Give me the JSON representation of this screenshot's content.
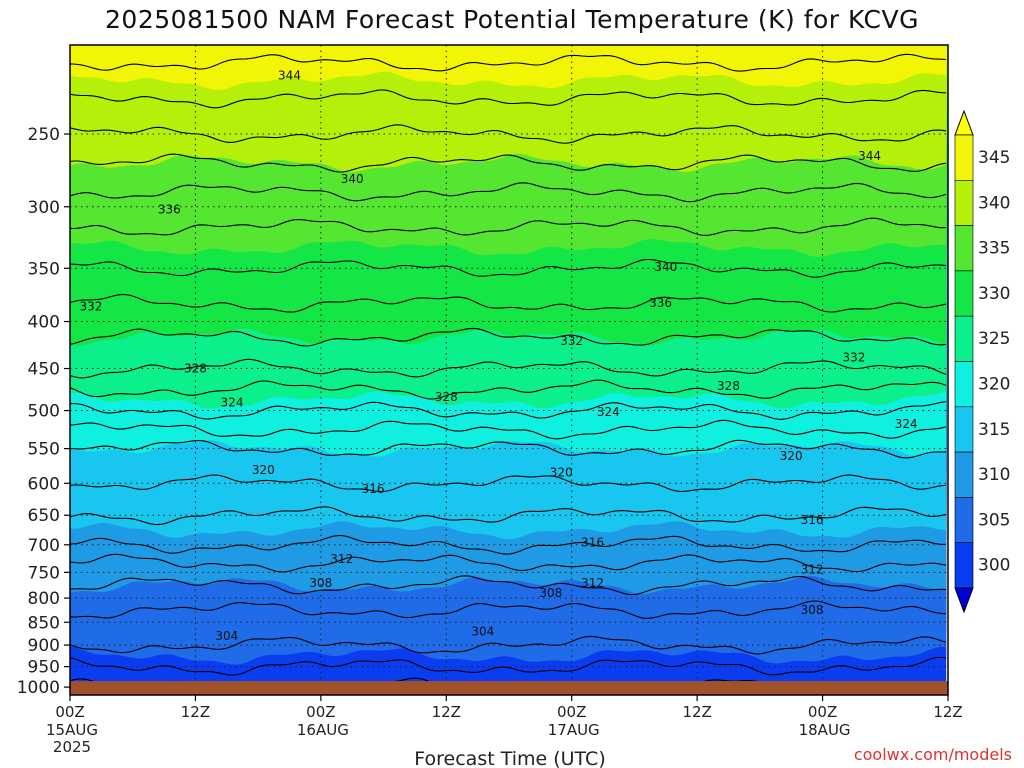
{
  "chart_data": {
    "type": "heatmap",
    "title": "2025081500 NAM Forecast Potential Temperature (K) for KCVG",
    "xlabel": "Forecast Time (UTC)",
    "ylabel": "",
    "x_ticks": [
      {
        "label": "00Z",
        "sub": [
          "15AUG",
          "2025"
        ],
        "hours": 0
      },
      {
        "label": "12Z",
        "sub": [],
        "hours": 12
      },
      {
        "label": "00Z",
        "sub": [
          "16AUG"
        ],
        "hours": 24
      },
      {
        "label": "12Z",
        "sub": [],
        "hours": 36
      },
      {
        "label": "00Z",
        "sub": [
          "17AUG"
        ],
        "hours": 48
      },
      {
        "label": "12Z",
        "sub": [],
        "hours": 60
      },
      {
        "label": "00Z",
        "sub": [
          "18AUG"
        ],
        "hours": 72
      },
      {
        "label": "12Z",
        "sub": [],
        "hours": 84
      }
    ],
    "xlim_hours": [
      0,
      84
    ],
    "y_ticks_hpa": [
      250,
      300,
      350,
      400,
      450,
      500,
      550,
      600,
      650,
      700,
      750,
      800,
      850,
      900,
      950,
      1000
    ],
    "ylim_hpa": [
      200,
      1020
    ],
    "y_scale": "log-pressure",
    "grid": true,
    "surface_pressure_hpa": 985,
    "colorbar": {
      "ticks": [
        345,
        340,
        335,
        330,
        325,
        320,
        315,
        310,
        305,
        300
      ],
      "levels": [
        {
          "range": [
            300,
            305
          ],
          "color": "#0a3cf0"
        },
        {
          "range": [
            305,
            310
          ],
          "color": "#1f6be8"
        },
        {
          "range": [
            310,
            315
          ],
          "color": "#1f9be6"
        },
        {
          "range": [
            315,
            320
          ],
          "color": "#19c6f0"
        },
        {
          "range": [
            320,
            325
          ],
          "color": "#0ff0e0"
        },
        {
          "range": [
            325,
            330
          ],
          "color": "#0cf08c"
        },
        {
          "range": [
            330,
            335
          ],
          "color": "#14e646"
        },
        {
          "range": [
            335,
            340
          ],
          "color": "#55e632"
        },
        {
          "range": [
            340,
            345
          ],
          "color": "#b4f00a"
        },
        {
          "range": [
            345,
            350
          ],
          "color": "#f2f505"
        }
      ],
      "under_color": "#0000d8",
      "over_color": "#ffff00"
    },
    "profile": {
      "pressure_hpa": [
        1000,
        950,
        900,
        850,
        800,
        750,
        700,
        650,
        600,
        550,
        500,
        450,
        400,
        350,
        300,
        250,
        200
      ],
      "theta_k": [
        302,
        304,
        306,
        307,
        309,
        311,
        314,
        316,
        318,
        320,
        324,
        328,
        331,
        334,
        337,
        342,
        347
      ]
    },
    "contour_levels": [
      302,
      304,
      306,
      308,
      310,
      312,
      314,
      316,
      318,
      320,
      322,
      324,
      326,
      328,
      330,
      332,
      334,
      336,
      338,
      340,
      342,
      344,
      346
    ],
    "contour_labels": [
      {
        "text": "344",
        "hours": 21,
        "hpa": 216
      },
      {
        "text": "344",
        "hours": 76.5,
        "hpa": 264
      },
      {
        "text": "340",
        "hours": 27,
        "hpa": 280
      },
      {
        "text": "340",
        "hours": 57,
        "hpa": 349
      },
      {
        "text": "336",
        "hours": 9.5,
        "hpa": 302
      },
      {
        "text": "336",
        "hours": 56.5,
        "hpa": 382
      },
      {
        "text": "332",
        "hours": 2,
        "hpa": 385
      },
      {
        "text": "332",
        "hours": 48,
        "hpa": 420
      },
      {
        "text": "332",
        "hours": 75,
        "hpa": 438
      },
      {
        "text": "328",
        "hours": 12,
        "hpa": 450
      },
      {
        "text": "328",
        "hours": 36,
        "hpa": 483
      },
      {
        "text": "328",
        "hours": 63,
        "hpa": 470
      },
      {
        "text": "324",
        "hours": 15.5,
        "hpa": 490
      },
      {
        "text": "324",
        "hours": 51.5,
        "hpa": 502
      },
      {
        "text": "324",
        "hours": 80,
        "hpa": 517
      },
      {
        "text": "320",
        "hours": 18.5,
        "hpa": 580
      },
      {
        "text": "320",
        "hours": 47,
        "hpa": 584
      },
      {
        "text": "320",
        "hours": 69,
        "hpa": 560
      },
      {
        "text": "316",
        "hours": 29,
        "hpa": 609
      },
      {
        "text": "316",
        "hours": 50,
        "hpa": 696
      },
      {
        "text": "316",
        "hours": 71,
        "hpa": 658
      },
      {
        "text": "312",
        "hours": 26,
        "hpa": 725
      },
      {
        "text": "312",
        "hours": 50,
        "hpa": 770
      },
      {
        "text": "312",
        "hours": 71,
        "hpa": 745
      },
      {
        "text": "308",
        "hours": 24,
        "hpa": 770
      },
      {
        "text": "308",
        "hours": 46,
        "hpa": 790
      },
      {
        "text": "308",
        "hours": 71,
        "hpa": 824
      },
      {
        "text": "304",
        "hours": 15,
        "hpa": 880
      },
      {
        "text": "304",
        "hours": 39.5,
        "hpa": 870
      }
    ]
  },
  "credit": "coolwx.com/models"
}
